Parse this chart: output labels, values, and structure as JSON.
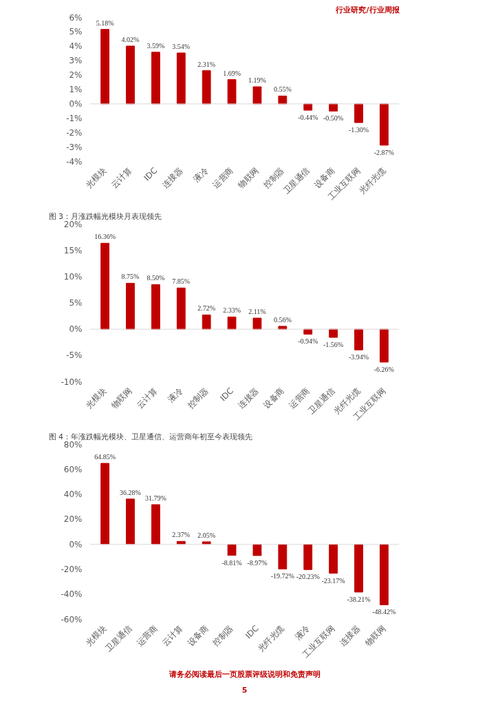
{
  "chart_data": [
    {
      "type": "bar",
      "annotations": [
        "行业研究/行业周报"
      ],
      "categories": [
        "光模块",
        "云计算",
        "IDC",
        "连接器",
        "液冷",
        "运营商",
        "物联网",
        "控制器",
        "卫星通信",
        "设备商",
        "工业互联网",
        "光纤光缆"
      ],
      "values": [
        5.18,
        4.02,
        3.59,
        3.54,
        2.31,
        1.69,
        1.19,
        0.55,
        -0.44,
        -0.5,
        -1.3,
        -2.87
      ],
      "value_labels": [
        "5.18%",
        "4.02%",
        "3.59%",
        "3.54%",
        "2.31%",
        "1.69%",
        "1.19%",
        "0.55%",
        "-0.44%",
        "-0.50%",
        "-1.30%",
        "-2.87%"
      ],
      "color": "#c00000",
      "ylim": [
        -4,
        6
      ],
      "yticks": [
        {
          "value": -4,
          "label": "-4%"
        },
        {
          "value": -3,
          "label": "-3%"
        },
        {
          "value": -2,
          "label": "-2%"
        },
        {
          "value": -1,
          "label": "-1%"
        },
        {
          "value": 0,
          "label": "0%"
        },
        {
          "value": 1,
          "label": "1%"
        },
        {
          "value": 2,
          "label": "2%"
        },
        {
          "value": 3,
          "label": "3%"
        },
        {
          "value": 4,
          "label": "4%"
        },
        {
          "value": 5,
          "label": "5%"
        },
        {
          "value": 6,
          "label": "6%"
        }
      ],
      "ref_lines": [
        {
          "axis": "y",
          "value": 0,
          "color": "#d9d9d9"
        }
      ]
    },
    {
      "type": "bar",
      "title": "图 3：月涨跌幅光模块月表现领先",
      "categories": [
        "光模块",
        "物联网",
        "云计算",
        "液冷",
        "控制器",
        "IDC",
        "连接器",
        "设备商",
        "运营商",
        "卫星通信",
        "光纤光缆",
        "工业互联网"
      ],
      "values": [
        16.36,
        8.75,
        8.5,
        7.85,
        2.72,
        2.33,
        2.11,
        0.56,
        -0.94,
        -1.56,
        -3.94,
        -6.26
      ],
      "value_labels": [
        "16.36%",
        "8.75%",
        "8.50%",
        "7.85%",
        "2.72%",
        "2.33%",
        "2.11%",
        "0.56%",
        "-0.94%",
        "-1.56%",
        "-3.94%",
        "-6.26%"
      ],
      "color": "#c00000",
      "ylim": [
        -10,
        20
      ],
      "yticks": [
        {
          "value": -10,
          "label": "-10%"
        },
        {
          "value": -5,
          "label": "-5%"
        },
        {
          "value": 0,
          "label": "0%"
        },
        {
          "value": 5,
          "label": "5%"
        },
        {
          "value": 10,
          "label": "10%"
        },
        {
          "value": 15,
          "label": "15%"
        },
        {
          "value": 20,
          "label": "20%"
        }
      ],
      "ref_lines": [
        {
          "axis": "y",
          "value": 0,
          "color": "#d9d9d9"
        }
      ]
    },
    {
      "type": "bar",
      "title": "图 4：年涨跌幅光模块、卫星通信、运营商年初至今表现领先",
      "annotations": [
        "请务必阅读最后一页股票评级说明和免责声明",
        "5"
      ],
      "categories": [
        "光模块",
        "卫星通信",
        "运营商",
        "云计算",
        "设备商",
        "控制器",
        "IDC",
        "光纤光缆",
        "液冷",
        "工业互联网",
        "连接器",
        "物联网"
      ],
      "values": [
        64.85,
        36.28,
        31.79,
        2.37,
        2.05,
        -8.81,
        -8.97,
        -19.72,
        -20.23,
        -23.17,
        -38.21,
        -48.42
      ],
      "value_labels": [
        "64.85%",
        "36.28%",
        "31.79%",
        "2.37%",
        "2.05%",
        "-8.81%",
        "-8.97%",
        "-19.72%",
        "-20.23%",
        "-23.17%",
        "-38.21%",
        "-48.42%"
      ],
      "color": "#c00000",
      "ylim": [
        -60,
        80
      ],
      "yticks": [
        {
          "value": -60,
          "label": "-60%"
        },
        {
          "value": -40,
          "label": "-40%"
        },
        {
          "value": -20,
          "label": "-20%"
        },
        {
          "value": 0,
          "label": "0%"
        },
        {
          "value": 20,
          "label": "20%"
        },
        {
          "value": 40,
          "label": "40%"
        },
        {
          "value": 60,
          "label": "60%"
        },
        {
          "value": 80,
          "label": "80%"
        }
      ],
      "ref_lines": [
        {
          "axis": "y",
          "value": 0,
          "color": "#d9d9d9"
        }
      ]
    }
  ]
}
